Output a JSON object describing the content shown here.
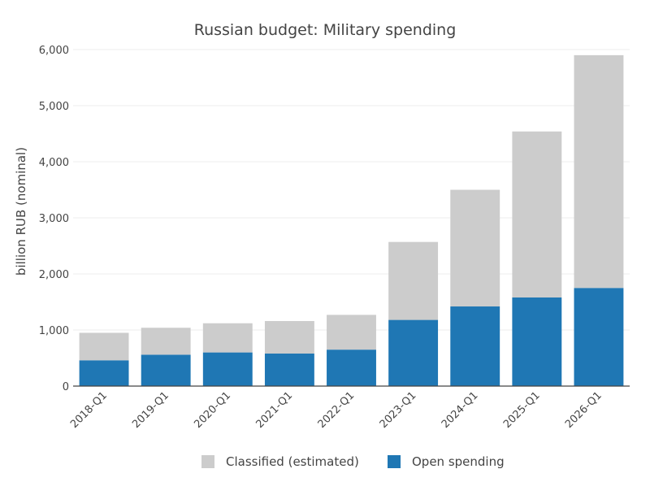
{
  "chart_data": {
    "type": "bar",
    "stacked": true,
    "title": "Russian budget: Military spending",
    "ylabel": "billion RUB (nominal)",
    "xlabel": "",
    "ylim": [
      0,
      6000
    ],
    "yticks": [
      0,
      1000,
      2000,
      3000,
      4000,
      5000,
      6000
    ],
    "ytick_labels": [
      "0",
      "1,000",
      "2,000",
      "3,000",
      "4,000",
      "5,000",
      "6,000"
    ],
    "categories": [
      "2018-Q1",
      "2019-Q1",
      "2020-Q1",
      "2021-Q1",
      "2022-Q1",
      "2023-Q1",
      "2024-Q1",
      "2025-Q1",
      "2026-Q1"
    ],
    "series": [
      {
        "name": "Open spending",
        "color": "#1f77b4",
        "values": [
          460,
          560,
          600,
          580,
          650,
          1180,
          1420,
          1580,
          1750
        ]
      },
      {
        "name": "Classified (estimated)",
        "color": "#cccccc",
        "values": [
          490,
          480,
          520,
          580,
          620,
          1390,
          2080,
          2960,
          4150
        ]
      }
    ],
    "legend": {
      "placement": "bottom",
      "order": [
        "Classified (estimated)",
        "Open spending"
      ]
    },
    "grid": true
  }
}
